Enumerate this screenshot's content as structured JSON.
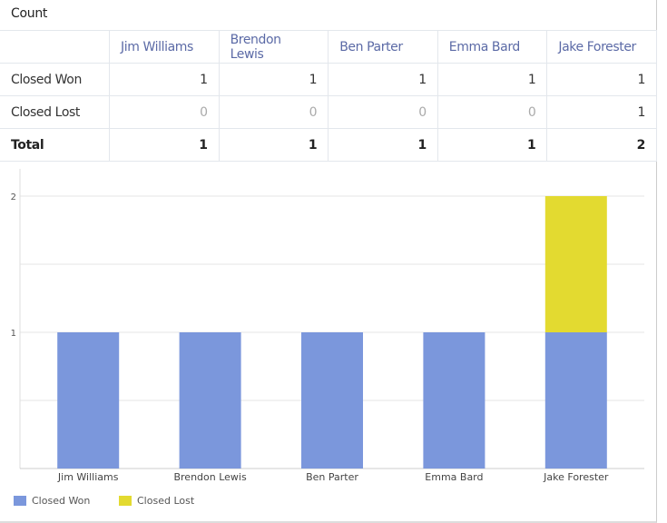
{
  "panel": {
    "title": "Count"
  },
  "table": {
    "columns": [
      "Jim Williams",
      "Brendon Lewis",
      "Ben Parter",
      "Emma Bard",
      "Jake Forester"
    ],
    "rows": [
      {
        "label": "Closed Won",
        "values": [
          "1",
          "1",
          "1",
          "1",
          "1"
        ]
      },
      {
        "label": "Closed Lost",
        "values": [
          "0",
          "0",
          "0",
          "0",
          "1"
        ]
      },
      {
        "label": "Total",
        "values": [
          "1",
          "1",
          "1",
          "1",
          "2"
        ]
      }
    ]
  },
  "chart_data": {
    "type": "bar",
    "stacked": true,
    "categories": [
      "Jim Williams",
      "Brendon Lewis",
      "Ben Parter",
      "Emma Bard",
      "Jake Forester"
    ],
    "series": [
      {
        "name": "Closed Won",
        "values": [
          1,
          1,
          1,
          1,
          1
        ],
        "color": "#7b97dc"
      },
      {
        "name": "Closed Lost",
        "values": [
          0,
          0,
          0,
          0,
          1
        ],
        "color": "#e3da30"
      }
    ],
    "ylim": [
      0,
      2
    ],
    "yticks": [
      "1",
      "2"
    ],
    "grid": true,
    "legend": "bottom-left"
  }
}
